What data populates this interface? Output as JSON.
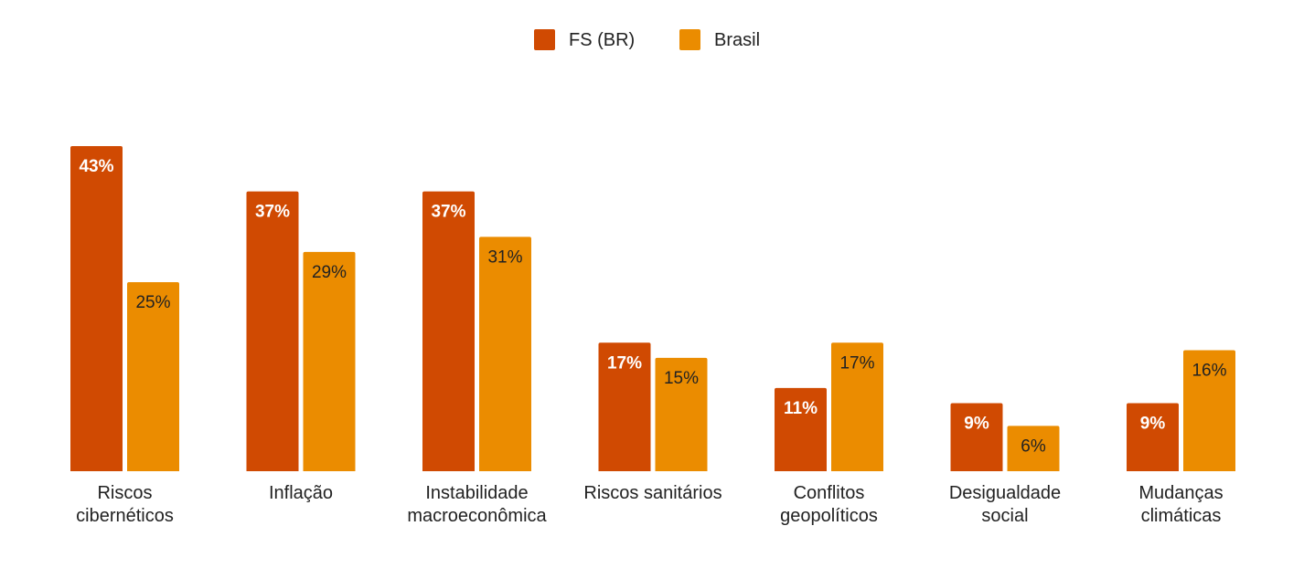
{
  "chart_data": {
    "type": "bar",
    "categories": [
      [
        "Riscos",
        "cibernéticos"
      ],
      [
        "Inflação"
      ],
      [
        "Instabilidade",
        "macroeconômica"
      ],
      [
        "Riscos sanitários"
      ],
      [
        "Conflitos",
        "geopolíticos"
      ],
      [
        "Desigualdade",
        "social"
      ],
      [
        "Mudanças",
        "climáticas"
      ]
    ],
    "series": [
      {
        "name": "FS (BR)",
        "color": "#d04a02",
        "values": [
          43,
          37,
          37,
          17,
          11,
          9,
          9
        ],
        "labels": [
          "43%",
          "37%",
          "37%",
          "17%",
          "11%",
          "9%",
          "9%"
        ]
      },
      {
        "name": "Brasil",
        "color": "#eb8c00",
        "values": [
          25,
          29,
          31,
          15,
          17,
          6,
          16
        ],
        "labels": [
          "25%",
          "29%",
          "31%",
          "15%",
          "17%",
          "6%",
          "16%"
        ]
      }
    ],
    "title": "",
    "xlabel": "",
    "ylabel": "",
    "ylim": [
      0,
      43
    ],
    "grid": false,
    "legend": "top-center"
  }
}
